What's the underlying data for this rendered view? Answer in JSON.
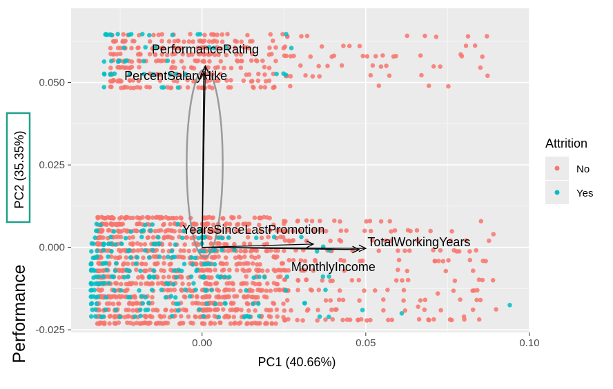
{
  "chart_data": {
    "type": "scatter",
    "xlabel": "PC1 (40.66%)",
    "ylabel": "PC2 (35.35%)",
    "side_label": "Performance",
    "xlim": [
      -0.04,
      0.1
    ],
    "ylim": [
      -0.0258,
      0.0725
    ],
    "x_ticks": [
      0.0,
      0.05,
      0.1
    ],
    "x_tick_labels": [
      "0.00",
      "0.05",
      "0.10"
    ],
    "y_ticks": [
      -0.025,
      0.0,
      0.025,
      0.05
    ],
    "y_tick_labels": [
      "-0.025",
      "0.000",
      "0.025",
      "0.050"
    ],
    "grid": true,
    "legend": {
      "title": "Attrition",
      "placement": "right",
      "entries": [
        {
          "label": "No",
          "color": "#F8766D"
        },
        {
          "label": "Yes",
          "color": "#00BFC4"
        }
      ]
    },
    "loading_vectors": [
      {
        "name": "PerformanceRating",
        "x": 0.001,
        "y": 0.055
      },
      {
        "name": "PercentSalaryHike",
        "x": 0.0005,
        "y": 0.053
      },
      {
        "name": "YearsSinceLastPromotion",
        "x": 0.034,
        "y": 0.001
      },
      {
        "name": "TotalWorkingYears",
        "x": 0.048,
        "y": -0.0007
      },
      {
        "name": "MonthlyIncome",
        "x": 0.05,
        "y": -0.0003
      }
    ],
    "ellipse": {
      "cx": 0.0008,
      "cy": 0.0255,
      "rx": 0.0055,
      "ry": 0.0285,
      "color": "#8c8c8c"
    },
    "series": [
      {
        "name": "No",
        "color": "#F8766D",
        "clusters": [
          {
            "x_min": -0.028,
            "x_max": 0.0,
            "y_levels": [
              0.0485,
              0.0505,
              0.0525,
              0.0545,
              0.0565,
              0.0585,
              0.0605,
              0.0625,
              0.0645
            ],
            "count": 170
          },
          {
            "x_min": 0.0,
            "x_max": 0.025,
            "y_levels": [
              0.0485,
              0.0505,
              0.0525,
              0.0545,
              0.0565,
              0.0585,
              0.0605,
              0.0625,
              0.0645
            ],
            "count": 110
          },
          {
            "x_min": 0.025,
            "x_max": 0.09,
            "y_levels": [
              0.049,
              0.052,
              0.055,
              0.058,
              0.061,
              0.064
            ],
            "count": 55
          },
          {
            "x_min": -0.032,
            "x_max": 0.0,
            "y_levels": [
              -0.023,
              -0.021,
              -0.019,
              -0.017,
              -0.015,
              -0.013,
              -0.011,
              -0.009,
              -0.007,
              -0.005,
              -0.003,
              -0.001,
              0.001,
              0.003,
              0.005,
              0.007,
              0.009
            ],
            "count": 640
          },
          {
            "x_min": 0.0,
            "x_max": 0.025,
            "y_levels": [
              -0.023,
              -0.021,
              -0.019,
              -0.017,
              -0.015,
              -0.013,
              -0.011,
              -0.009,
              -0.007,
              -0.005,
              -0.003,
              -0.001,
              0.001,
              0.003,
              0.005,
              0.007,
              0.009
            ],
            "count": 420
          },
          {
            "x_min": 0.025,
            "x_max": 0.09,
            "y_levels": [
              -0.022,
              -0.019,
              -0.016,
              -0.013,
              -0.01,
              -0.007,
              -0.004,
              -0.001,
              0.002,
              0.005,
              0.008
            ],
            "count": 190
          }
        ]
      },
      {
        "name": "Yes",
        "color": "#00BFC4",
        "clusters": [
          {
            "x_min": -0.03,
            "x_max": 0.0,
            "y_levels": [
              0.0485,
              0.0525,
              0.0565,
              0.0605,
              0.0645
            ],
            "count": 40
          },
          {
            "x_min": 0.0,
            "x_max": 0.03,
            "y_levels": [
              0.0525,
              0.0605,
              0.0645
            ],
            "count": 8
          },
          {
            "x_min": -0.034,
            "x_max": 0.0,
            "y_levels": [
              -0.021,
              -0.019,
              -0.017,
              -0.015,
              -0.013,
              -0.011,
              -0.009,
              -0.007,
              -0.005,
              -0.003,
              -0.001,
              0.001,
              0.003,
              0.005,
              0.007
            ],
            "count": 160
          },
          {
            "x_min": 0.0,
            "x_max": 0.04,
            "y_levels": [
              -0.021,
              -0.017,
              -0.013,
              -0.009,
              -0.005,
              -0.001,
              0.003
            ],
            "count": 60
          }
        ],
        "extra_points": [
          [
            0.094,
            -0.0175
          ],
          [
            0.061,
            -0.02
          ],
          [
            0.037,
            0.0002
          ],
          [
            0.049,
            -0.019
          ]
        ]
      }
    ],
    "extra_points_no": [
      [
        0.085,
        0.0545
      ],
      [
        0.079,
        0.0585
      ],
      [
        0.089,
        0.004
      ],
      [
        0.08,
        -0.021
      ],
      [
        0.072,
        -0.014
      ],
      [
        0.066,
        -0.018
      ],
      [
        0.058,
        -0.022
      ]
    ]
  }
}
